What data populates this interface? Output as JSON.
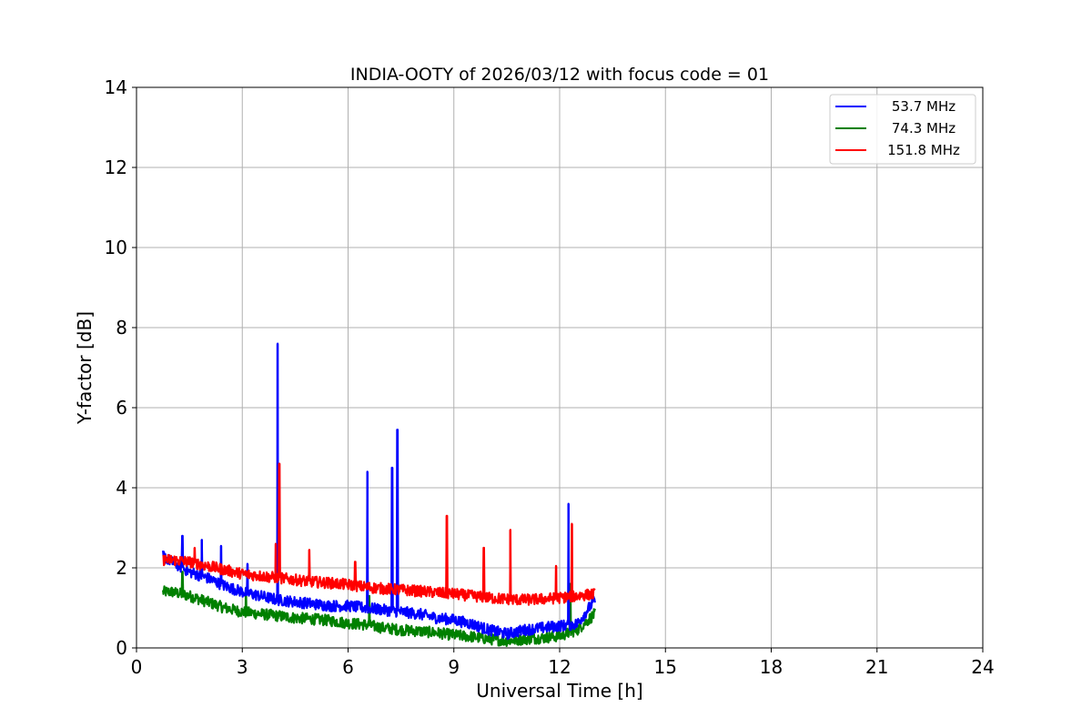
{
  "chart_data": {
    "type": "line",
    "title": "INDIA-OOTY of 2026/03/12 with focus code = 01",
    "xlabel": "Universal Time [h]",
    "ylabel": "Y-factor [dB]",
    "xlim": [
      0,
      24
    ],
    "ylim": [
      0,
      14
    ],
    "xticks": [
      0,
      3,
      6,
      9,
      12,
      15,
      18,
      21,
      24
    ],
    "yticks": [
      0,
      2,
      4,
      6,
      8,
      10,
      12,
      14
    ],
    "grid": true,
    "legend_position": "top-right",
    "series": [
      {
        "name": "53.7 MHz",
        "color": "#0000ff",
        "x": [
          0.75,
          1.0,
          1.5,
          2.0,
          2.5,
          3.0,
          3.5,
          4.0,
          4.5,
          5.0,
          5.5,
          6.0,
          6.5,
          7.0,
          7.5,
          8.0,
          8.5,
          9.0,
          9.5,
          10.0,
          10.5,
          11.0,
          11.5,
          12.0,
          12.5,
          13.0
        ],
        "y": [
          2.3,
          2.15,
          1.9,
          1.75,
          1.55,
          1.4,
          1.3,
          1.2,
          1.15,
          1.1,
          1.05,
          1.05,
          1.0,
          0.95,
          0.9,
          0.85,
          0.75,
          0.7,
          0.6,
          0.45,
          0.35,
          0.45,
          0.5,
          0.55,
          0.6,
          1.2
        ],
        "spikes": [
          {
            "x": 1.3,
            "y": 2.8
          },
          {
            "x": 1.85,
            "y": 2.7
          },
          {
            "x": 2.4,
            "y": 2.55
          },
          {
            "x": 3.15,
            "y": 2.1
          },
          {
            "x": 4.0,
            "y": 7.6
          },
          {
            "x": 6.55,
            "y": 4.4
          },
          {
            "x": 7.25,
            "y": 4.5
          },
          {
            "x": 7.4,
            "y": 5.45
          },
          {
            "x": 12.25,
            "y": 3.6
          }
        ]
      },
      {
        "name": "74.3 MHz",
        "color": "#008000",
        "x": [
          0.75,
          1.0,
          1.5,
          2.0,
          2.5,
          3.0,
          3.5,
          4.0,
          4.5,
          5.0,
          5.5,
          6.0,
          6.5,
          7.0,
          7.5,
          8.0,
          8.5,
          9.0,
          9.5,
          10.0,
          10.5,
          11.0,
          11.5,
          12.0,
          12.5,
          13.0
        ],
        "y": [
          1.4,
          1.4,
          1.3,
          1.15,
          1.0,
          0.9,
          0.85,
          0.8,
          0.75,
          0.72,
          0.68,
          0.62,
          0.58,
          0.5,
          0.45,
          0.42,
          0.38,
          0.32,
          0.28,
          0.22,
          0.18,
          0.22,
          0.25,
          0.3,
          0.45,
          0.85
        ],
        "spikes": [
          {
            "x": 1.3,
            "y": 1.9
          },
          {
            "x": 3.1,
            "y": 1.5
          },
          {
            "x": 6.6,
            "y": 1.3
          },
          {
            "x": 12.3,
            "y": 1.6
          }
        ]
      },
      {
        "name": "151.8 MHz",
        "color": "#ff0000",
        "x": [
          0.75,
          1.0,
          1.5,
          2.0,
          2.5,
          3.0,
          3.5,
          4.0,
          4.5,
          5.0,
          5.5,
          6.0,
          6.5,
          7.0,
          7.5,
          8.0,
          8.5,
          9.0,
          9.5,
          10.0,
          10.5,
          11.0,
          11.5,
          12.0,
          12.5,
          13.0
        ],
        "y": [
          2.2,
          2.2,
          2.15,
          2.05,
          1.95,
          1.85,
          1.8,
          1.75,
          1.7,
          1.65,
          1.62,
          1.58,
          1.52,
          1.48,
          1.45,
          1.42,
          1.38,
          1.35,
          1.3,
          1.25,
          1.22,
          1.2,
          1.22,
          1.25,
          1.3,
          1.35
        ],
        "spikes": [
          {
            "x": 1.65,
            "y": 2.5
          },
          {
            "x": 3.95,
            "y": 2.6
          },
          {
            "x": 4.05,
            "y": 4.6
          },
          {
            "x": 4.9,
            "y": 2.45
          },
          {
            "x": 6.2,
            "y": 2.15
          },
          {
            "x": 8.8,
            "y": 3.3
          },
          {
            "x": 9.85,
            "y": 2.5
          },
          {
            "x": 10.6,
            "y": 2.95
          },
          {
            "x": 11.9,
            "y": 2.05
          },
          {
            "x": 12.35,
            "y": 3.1
          }
        ]
      }
    ]
  }
}
